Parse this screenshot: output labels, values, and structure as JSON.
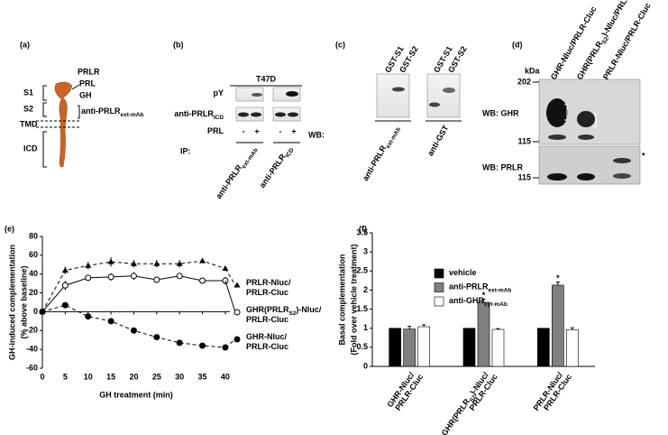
{
  "panel_labels": [
    "(a)",
    "(b)",
    "(c)",
    "(d)",
    "(e)",
    "(f)"
  ],
  "a": {
    "title": "PRLR",
    "ligands": [
      "PRL",
      "GH"
    ],
    "antibody": [
      "anti-PRLR",
      "ext-mAb"
    ],
    "domains": [
      "S1",
      "S2",
      "TMD",
      "ICD"
    ]
  },
  "b": {
    "cell_line": "T47D",
    "rows": [
      [
        "pY"
      ],
      [
        "anti-PRLR",
        "ICD"
      ],
      [
        "PRL"
      ]
    ],
    "treatment": [
      "-",
      "+",
      "-",
      "+"
    ],
    "wb": "WB:",
    "ip": "IP:",
    "ip_antibodies": [
      [
        "anti-PRLR",
        "ext-mAb"
      ],
      [
        "anti-PRLR",
        "ICD"
      ]
    ]
  },
  "c": {
    "lanes": [
      "GST-S1",
      "GST-S2",
      "GST-S1",
      "GST-S2"
    ],
    "antibodies": [
      [
        "anti-PRLR",
        "ext-mAb"
      ],
      [
        "anti-GST"
      ]
    ]
  },
  "d": {
    "kda": "kDa",
    "markers": [
      "202",
      "115",
      "115"
    ],
    "lanes": [
      [
        "GHR-Nluc/PRLR-Cluc"
      ],
      [
        "GHR(PRLR",
        "S2",
        ")-Nluc/PRLR-Cluc"
      ],
      [
        "PRLR-Nluc/PRLR-Cluc"
      ]
    ],
    "blots": [
      "WB: GHR",
      "WB: PRLR"
    ],
    "asterisk": "*"
  },
  "chart_data": [
    {
      "type": "line",
      "y_label": [
        "GH-induced complementation",
        "(% above baseline)"
      ],
      "x_label": "GH treatment (min)",
      "x": [
        0,
        5,
        10,
        15,
        20,
        25,
        30,
        35,
        40
      ],
      "xlim": [
        0,
        41
      ],
      "xticks": [
        0,
        5,
        10,
        15,
        20,
        25,
        30,
        35,
        40
      ],
      "ylim": [
        -60,
        80
      ],
      "yticks": [
        -60,
        -40,
        -20,
        0,
        20,
        40,
        60,
        80
      ],
      "series": [
        {
          "name": [
            [
              "PRLR-Nluc/"
            ],
            [
              "PRLR-Cluc"
            ]
          ],
          "color": "#000000",
          "marker": "triangle",
          "dashed": true,
          "values": [
            0,
            44,
            49,
            53,
            51,
            51,
            51,
            54,
            46
          ],
          "errors": [
            0,
            4,
            4,
            5,
            4,
            4,
            4,
            2,
            2
          ]
        },
        {
          "name": [
            [
              "GHR(PRLR",
              "S2",
              ")-Nluc/"
            ],
            [
              "PRLR-Cluc"
            ]
          ],
          "color": "#000000",
          "marker": "open-circle",
          "dashed": false,
          "values": [
            0,
            28,
            36,
            37,
            38,
            34,
            38,
            33,
            33
          ],
          "errors": [
            0,
            5,
            3,
            4,
            4,
            2,
            3,
            3,
            4
          ]
        },
        {
          "name": [
            [
              "GHR-Nluc/"
            ],
            [
              "PRLR-Cluc"
            ]
          ],
          "color": "#000000",
          "marker": "filled-circle",
          "dashed": true,
          "values": [
            0,
            7,
            -5,
            -10,
            -20,
            -27,
            -33,
            -36,
            -38
          ],
          "errors": [
            0,
            1,
            1,
            1,
            1,
            1,
            1,
            1,
            1
          ]
        }
      ]
    },
    {
      "type": "bar",
      "y_label": [
        "Basal complementation",
        "(Fold over vehicle treatment)"
      ],
      "categories": [
        [
          [
            "GHR-Nluc/"
          ],
          [
            "PRLR-Cluc"
          ]
        ],
        [
          [
            "GHR(PRLR",
            "S2",
            ")-Nluc/"
          ],
          [
            "PRLR-Cluc"
          ]
        ],
        [
          [
            "PRLR-Nluc/"
          ],
          [
            "PRLR-Cluc"
          ]
        ]
      ],
      "ylim": [
        0,
        3.5
      ],
      "yticks": [
        0,
        0.5,
        1,
        1.5,
        2,
        2.5,
        3,
        3.5
      ],
      "series": [
        {
          "name": [
            "vehicle"
          ],
          "color": "#000000",
          "values": [
            1,
            1,
            1
          ],
          "errors": [
            0,
            0,
            0
          ]
        },
        {
          "name": [
            "anti-PRLR",
            "ext-mAb"
          ],
          "color": "#808080",
          "values": [
            0.98,
            1.68,
            2.13
          ],
          "errors": [
            0.07,
            0.08,
            0.08
          ],
          "significance": [
            null,
            "*",
            "*"
          ]
        },
        {
          "name": [
            "anti-GHR",
            "cyt-mAb"
          ],
          "color": "#ffffff",
          "values": [
            1.04,
            0.97,
            0.96
          ],
          "errors": [
            0.05,
            0.02,
            0.05
          ]
        }
      ]
    }
  ]
}
